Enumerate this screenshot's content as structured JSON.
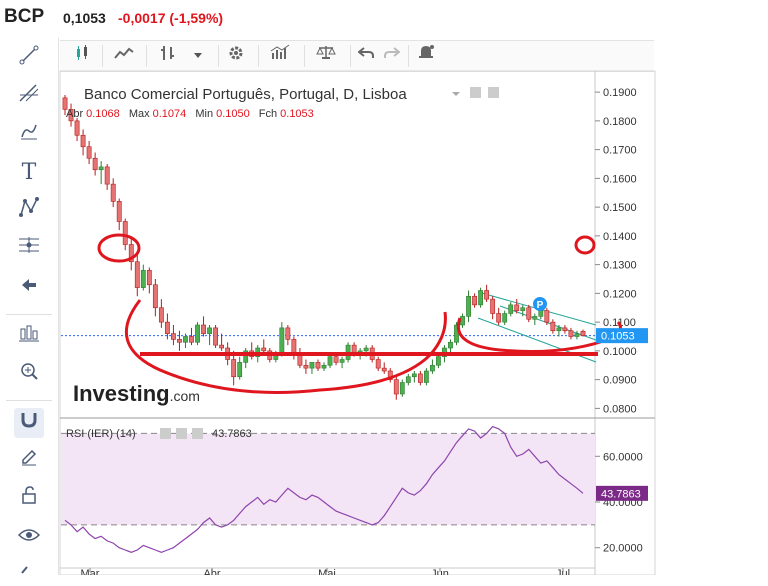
{
  "header": {
    "ticker": "BCP",
    "price": "0,1053",
    "change": "-0,0017 (-1,59%)"
  },
  "toolbar": {
    "icons": [
      "candles-icon",
      "mountain-chart-icon",
      "bars-icon",
      "dropdown-arrow-icon",
      "settings-gear-icon",
      "indicators-icon",
      "scale-icon",
      "undo-icon",
      "redo-icon",
      "alert-bell-icon"
    ]
  },
  "left_tools": {
    "icons": [
      "trendline-icon",
      "fib-tool-icon",
      "brush-icon",
      "text-tool-icon",
      "pattern-tool-icon",
      "measure-tool-icon",
      "back-arrow-icon",
      "chart-type-icon",
      "zoom-in-icon",
      "magnet-icon",
      "lock-edit-icon",
      "unlock-icon",
      "eye-icon",
      "link-icon"
    ]
  },
  "chart_data": {
    "type": "candlestick",
    "title": "Banco Comercial Português, Portugal, D, Lisboa",
    "ohlc_labels": {
      "open": "Abr",
      "high": "Max",
      "low": "Min",
      "close": "Fch"
    },
    "ohlc_values": {
      "open": "0.1068",
      "high": "0.1074",
      "low": "0.1050",
      "close": "0.1053"
    },
    "y_ticks": [
      "0.1900",
      "0.1800",
      "0.1700",
      "0.1600",
      "0.1500",
      "0.1400",
      "0.1300",
      "0.1200",
      "0.1100",
      "0.1000",
      "0.0900",
      "0.0800"
    ],
    "ylim": [
      0.077,
      0.197
    ],
    "last_price": "0.1053",
    "x_labels": [
      "Mar",
      "Abr",
      "Mai",
      "Jun",
      "Jul"
    ],
    "watermark": "Investing",
    "watermark_suffix": ".com",
    "marker_letter": "P",
    "candles": [
      [
        0.188,
        0.189,
        0.182,
        0.184
      ],
      [
        0.184,
        0.186,
        0.178,
        0.18
      ],
      [
        0.18,
        0.181,
        0.173,
        0.175
      ],
      [
        0.175,
        0.177,
        0.168,
        0.171
      ],
      [
        0.171,
        0.173,
        0.165,
        0.167
      ],
      [
        0.167,
        0.169,
        0.161,
        0.163
      ],
      [
        0.163,
        0.166,
        0.158,
        0.164
      ],
      [
        0.164,
        0.165,
        0.156,
        0.158
      ],
      [
        0.158,
        0.16,
        0.15,
        0.152
      ],
      [
        0.152,
        0.153,
        0.142,
        0.145
      ],
      [
        0.145,
        0.146,
        0.135,
        0.137
      ],
      [
        0.137,
        0.139,
        0.128,
        0.131
      ],
      [
        0.131,
        0.134,
        0.119,
        0.122
      ],
      [
        0.122,
        0.13,
        0.121,
        0.128
      ],
      [
        0.128,
        0.129,
        0.12,
        0.123
      ],
      [
        0.123,
        0.125,
        0.112,
        0.115
      ],
      [
        0.115,
        0.118,
        0.108,
        0.11
      ],
      [
        0.11,
        0.113,
        0.104,
        0.106
      ],
      [
        0.106,
        0.109,
        0.102,
        0.104
      ],
      [
        0.104,
        0.107,
        0.1,
        0.103
      ],
      [
        0.103,
        0.106,
        0.101,
        0.105
      ],
      [
        0.105,
        0.108,
        0.102,
        0.103
      ],
      [
        0.103,
        0.11,
        0.102,
        0.109
      ],
      [
        0.109,
        0.112,
        0.105,
        0.106
      ],
      [
        0.106,
        0.109,
        0.102,
        0.108
      ],
      [
        0.108,
        0.109,
        0.101,
        0.102
      ],
      [
        0.102,
        0.106,
        0.1,
        0.101
      ],
      [
        0.101,
        0.103,
        0.095,
        0.097
      ],
      [
        0.097,
        0.1,
        0.088,
        0.091
      ],
      [
        0.091,
        0.098,
        0.09,
        0.096
      ],
      [
        0.096,
        0.101,
        0.094,
        0.1
      ],
      [
        0.1,
        0.103,
        0.097,
        0.098
      ],
      [
        0.098,
        0.102,
        0.096,
        0.101
      ],
      [
        0.101,
        0.104,
        0.099,
        0.1
      ],
      [
        0.1,
        0.101,
        0.096,
        0.097
      ],
      [
        0.097,
        0.1,
        0.096,
        0.099
      ],
      [
        0.099,
        0.11,
        0.098,
        0.108
      ],
      [
        0.108,
        0.109,
        0.102,
        0.104
      ],
      [
        0.104,
        0.105,
        0.097,
        0.099
      ],
      [
        0.099,
        0.101,
        0.094,
        0.095
      ],
      [
        0.095,
        0.097,
        0.092,
        0.094
      ],
      [
        0.094,
        0.096,
        0.092,
        0.096
      ],
      [
        0.096,
        0.097,
        0.093,
        0.094
      ],
      [
        0.094,
        0.096,
        0.093,
        0.095
      ],
      [
        0.095,
        0.099,
        0.094,
        0.098
      ],
      [
        0.098,
        0.099,
        0.095,
        0.096
      ],
      [
        0.096,
        0.098,
        0.094,
        0.097
      ],
      [
        0.097,
        0.103,
        0.096,
        0.102
      ],
      [
        0.102,
        0.103,
        0.098,
        0.099
      ],
      [
        0.099,
        0.101,
        0.097,
        0.1
      ],
      [
        0.1,
        0.102,
        0.098,
        0.101
      ],
      [
        0.101,
        0.102,
        0.096,
        0.097
      ],
      [
        0.097,
        0.098,
        0.093,
        0.094
      ],
      [
        0.094,
        0.096,
        0.092,
        0.093
      ],
      [
        0.093,
        0.094,
        0.089,
        0.09
      ],
      [
        0.09,
        0.091,
        0.083,
        0.085
      ],
      [
        0.085,
        0.09,
        0.084,
        0.089
      ],
      [
        0.089,
        0.092,
        0.088,
        0.091
      ],
      [
        0.091,
        0.093,
        0.089,
        0.092
      ],
      [
        0.092,
        0.093,
        0.088,
        0.089
      ],
      [
        0.089,
        0.094,
        0.088,
        0.093
      ],
      [
        0.093,
        0.097,
        0.092,
        0.095
      ],
      [
        0.095,
        0.099,
        0.094,
        0.098
      ],
      [
        0.098,
        0.102,
        0.096,
        0.101
      ],
      [
        0.101,
        0.104,
        0.099,
        0.103
      ],
      [
        0.103,
        0.11,
        0.102,
        0.109
      ],
      [
        0.109,
        0.113,
        0.108,
        0.112
      ],
      [
        0.112,
        0.121,
        0.11,
        0.119
      ],
      [
        0.119,
        0.12,
        0.115,
        0.116
      ],
      [
        0.116,
        0.122,
        0.115,
        0.121
      ],
      [
        0.121,
        0.123,
        0.117,
        0.118
      ],
      [
        0.118,
        0.119,
        0.111,
        0.113
      ],
      [
        0.113,
        0.115,
        0.109,
        0.11
      ],
      [
        0.11,
        0.114,
        0.109,
        0.113
      ],
      [
        0.113,
        0.117,
        0.112,
        0.116
      ],
      [
        0.116,
        0.118,
        0.113,
        0.114
      ],
      [
        0.114,
        0.116,
        0.112,
        0.115
      ],
      [
        0.115,
        0.116,
        0.11,
        0.111
      ],
      [
        0.111,
        0.113,
        0.109,
        0.112
      ],
      [
        0.112,
        0.115,
        0.111,
        0.114
      ],
      [
        0.114,
        0.115,
        0.109,
        0.11
      ],
      [
        0.11,
        0.111,
        0.106,
        0.107
      ],
      [
        0.107,
        0.109,
        0.105,
        0.108
      ],
      [
        0.108,
        0.109,
        0.106,
        0.107
      ],
      [
        0.107,
        0.108,
        0.104,
        0.105
      ],
      [
        0.105,
        0.107,
        0.104,
        0.106
      ],
      [
        0.1068,
        0.1074,
        0.105,
        0.1053
      ]
    ],
    "rsi": {
      "label": "RSI (IER) (14)",
      "value": "43.7863",
      "y_ticks": [
        "60.0000",
        "40.0000",
        "20.0000"
      ],
      "ylim": [
        12,
        75
      ],
      "levels": [
        70,
        30
      ],
      "values": [
        32,
        30,
        27,
        29,
        26,
        24,
        25,
        23,
        22,
        20,
        19,
        18,
        19,
        21,
        20,
        19,
        18,
        19,
        20,
        22,
        24,
        26,
        28,
        31,
        33,
        30,
        29,
        30,
        32,
        35,
        38,
        40,
        42,
        39,
        41,
        40,
        43,
        46,
        44,
        42,
        41,
        43,
        42,
        40,
        38,
        36,
        35,
        34,
        33,
        32,
        31,
        30,
        31,
        34,
        38,
        42,
        46,
        44,
        43,
        45,
        48,
        52,
        55,
        58,
        62,
        66,
        69,
        72,
        71,
        68,
        70,
        73,
        72,
        70,
        64,
        60,
        61,
        63,
        60,
        57,
        58,
        55,
        52,
        50,
        48,
        46,
        43.7863
      ]
    },
    "drawing_color": "#e0161f"
  }
}
